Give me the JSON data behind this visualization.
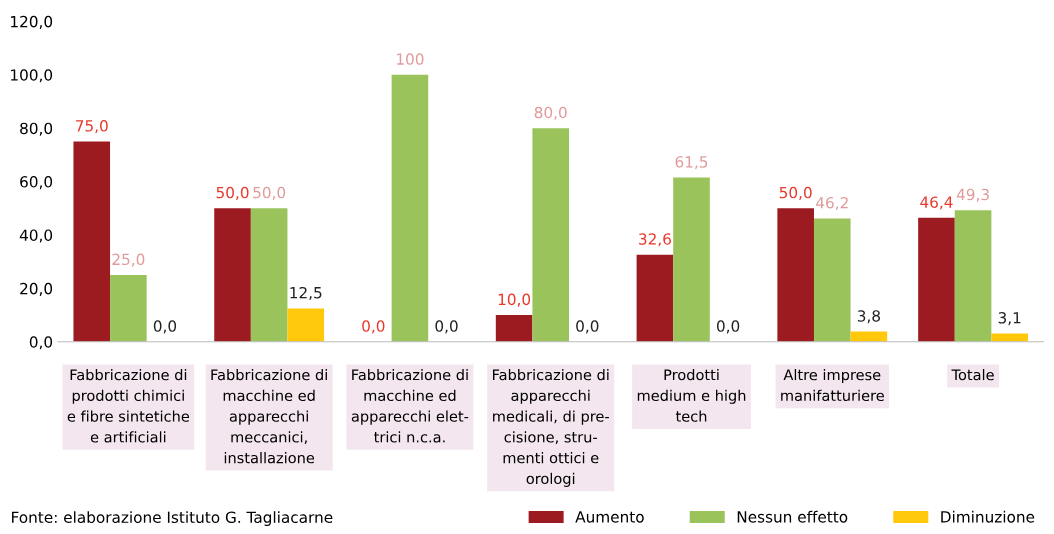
{
  "chart_data": {
    "type": "bar",
    "categories": [
      "Fabbricazione di\nprodotti chimici\ne fibre sintetiche\ne artificiali",
      "Fabbricazione di\nmacchine ed\napparecchi\nmeccanici,\ninstallazione",
      "Fabbricazione di\nmacchine ed\napparecchi elet-\ntrici n.c.a.",
      "Fabbricazione di\napparecchi\nmedicali, di pre-\ncisione, stru-\nmenti ottici e\norologi",
      "Prodotti\nmedium e high\ntech",
      "Altre imprese\nmanifatturiere",
      "Totale"
    ],
    "series": [
      {
        "name": "Aumento",
        "color": "#9b1b20",
        "values": [
          75.0,
          50.0,
          0.0,
          10.0,
          32.6,
          50.0,
          46.4
        ]
      },
      {
        "name": "Nessun effetto",
        "color": "#9bc35c",
        "values": [
          25.0,
          50.0,
          100,
          80.0,
          61.5,
          46.2,
          49.3
        ]
      },
      {
        "name": "Diminuzione",
        "color": "#ffc80a",
        "values": [
          0.0,
          12.5,
          0.0,
          0.0,
          0.0,
          3.8,
          3.1
        ]
      }
    ],
    "value_labels": [
      [
        "75,0",
        "50,0",
        "0,0",
        "10,0",
        "32,6",
        "50,0",
        "46,4"
      ],
      [
        "25,0",
        "50,0",
        "100",
        "80,0",
        "61,5",
        "46,2",
        "49,3"
      ],
      [
        "0,0",
        "12,5",
        "0,0",
        "0,0",
        "0,0",
        "3,8",
        "3,1"
      ]
    ],
    "ylim": [
      0,
      120
    ],
    "yticks": [
      {
        "value": 0,
        "label": "0,0"
      },
      {
        "value": 20,
        "label": "20,0"
      },
      {
        "value": 40,
        "label": "40,0"
      },
      {
        "value": 60,
        "label": "60,0"
      },
      {
        "value": 80,
        "label": "80,0"
      },
      {
        "value": 100,
        "label": "100,0"
      },
      {
        "value": 120,
        "label": "120,0"
      }
    ],
    "grid": false,
    "legend": "bottom right",
    "annotations": [
      "Fonte: elaborazione Istituto G. Tagliacarne"
    ]
  }
}
